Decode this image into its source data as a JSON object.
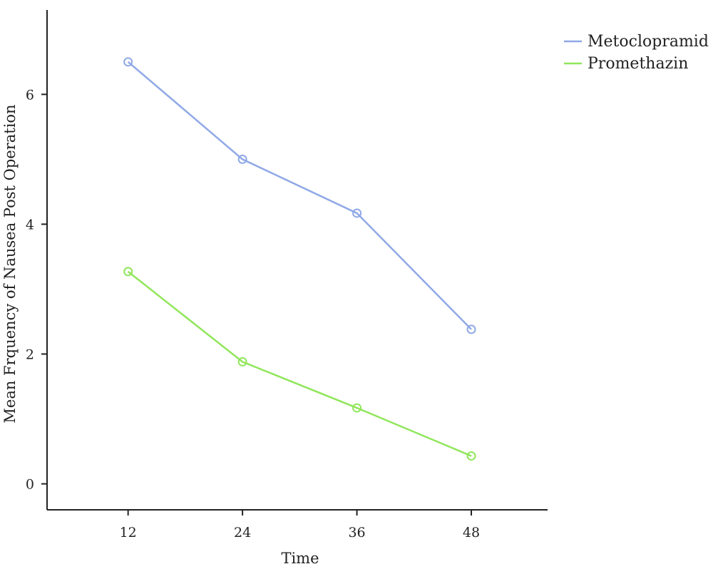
{
  "chart_data": {
    "type": "line",
    "title": "",
    "xlabel": "Time",
    "ylabel": "Mean Frquency of Nausea Post Operation",
    "x": [
      12,
      24,
      36,
      48
    ],
    "x_tick_labels": [
      "12",
      "24",
      "36",
      "48"
    ],
    "y_ticks": [
      0,
      2,
      4,
      6
    ],
    "y_tick_labels": [
      "0",
      "2",
      "4",
      "6"
    ],
    "xlim": [
      3.5,
      56
    ],
    "ylim": [
      -0.4,
      7.3
    ],
    "grid": false,
    "legend_position": "top-right",
    "series": [
      {
        "name": "Metoclopramid",
        "color": "#8fa8e6",
        "marker": "open-circle",
        "values": [
          6.5,
          5.0,
          4.17,
          2.38
        ]
      },
      {
        "name": "Promethazin",
        "color": "#90e65a",
        "marker": "open-circle",
        "values": [
          3.27,
          1.88,
          1.17,
          0.43
        ]
      }
    ]
  }
}
